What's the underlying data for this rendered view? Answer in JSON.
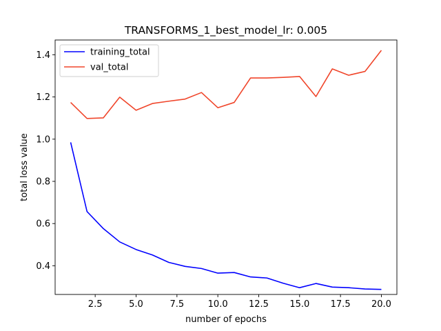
{
  "chart_data": {
    "type": "line",
    "title": "TRANSFORMS_1_best_model_lr: 0.005",
    "xlabel": "number of epochs",
    "ylabel": "total loss value",
    "xlim": [
      0.05,
      20.95
    ],
    "ylim": [
      0.264,
      1.47
    ],
    "xticks": [
      2.5,
      5.0,
      7.5,
      10.0,
      12.5,
      15.0,
      17.5,
      20.0
    ],
    "xtick_labels": [
      "2.5",
      "5.0",
      "7.5",
      "10.0",
      "12.5",
      "15.0",
      "17.5",
      "20.0"
    ],
    "yticks": [
      0.4,
      0.6,
      0.8,
      1.0,
      1.2,
      1.4
    ],
    "ytick_labels": [
      "0.4",
      "0.6",
      "0.8",
      "1.0",
      "1.2",
      "1.4"
    ],
    "grid": false,
    "legend_position": "upper-left",
    "x": [
      1,
      2,
      3,
      4,
      5,
      6,
      7,
      8,
      9,
      10,
      11,
      12,
      13,
      14,
      15,
      16,
      17,
      18,
      19,
      20
    ],
    "series": [
      {
        "name": "training_total",
        "color": "#0000ff",
        "values": [
          0.985,
          0.657,
          0.576,
          0.513,
          0.477,
          0.451,
          0.416,
          0.397,
          0.387,
          0.365,
          0.368,
          0.347,
          0.342,
          0.317,
          0.296,
          0.316,
          0.299,
          0.296,
          0.29,
          0.288
        ]
      },
      {
        "name": "val_total",
        "color": "#f0452a",
        "values": [
          1.174,
          1.098,
          1.101,
          1.199,
          1.137,
          1.169,
          1.18,
          1.19,
          1.221,
          1.149,
          1.174,
          1.29,
          1.29,
          1.293,
          1.297,
          1.202,
          1.333,
          1.303,
          1.321,
          1.421
        ]
      }
    ]
  }
}
